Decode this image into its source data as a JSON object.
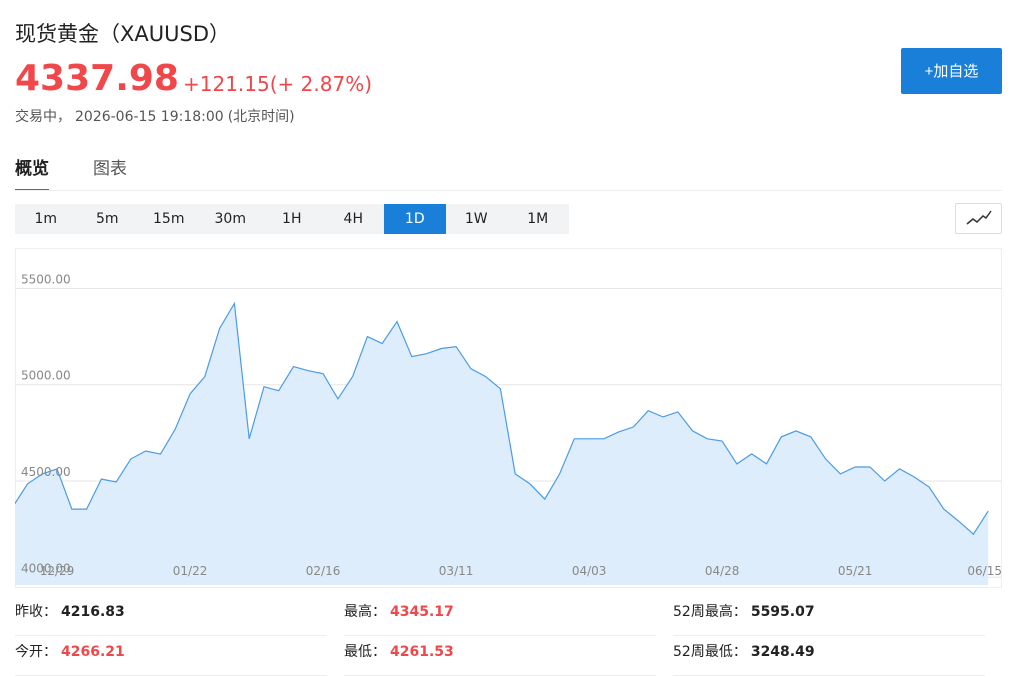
{
  "header": {
    "title": "现货黄金（XAUUSD）",
    "price": "4337.98",
    "change": "+121.15",
    "change_pct": "(+ 2.87%)",
    "status": "交易中，",
    "time": "2026-06-15 19:18:00",
    "timezone": "(北京时间)"
  },
  "button": "+加自选",
  "tabs": [
    "概览",
    "图表"
  ],
  "intervals": [
    "1m",
    "5m",
    "15m",
    "30m",
    "1H",
    "4H",
    "1D",
    "1W",
    "1M"
  ],
  "active_interval": "1D",
  "chart_data": {
    "type": "area",
    "color": "#4a9be8",
    "fill": "#deedfb",
    "categories": [
      null,
      null,
      null,
      "12/29",
      null,
      null,
      null,
      null,
      null,
      null,
      null,
      null,
      "01/22",
      null,
      null,
      null,
      null,
      null,
      null,
      null,
      null,
      "02/16",
      null,
      null,
      null,
      null,
      null,
      null,
      null,
      null,
      "03/11",
      null,
      null,
      null,
      null,
      null,
      null,
      null,
      null,
      "04/03",
      null,
      null,
      null,
      null,
      null,
      null,
      null,
      null,
      "04/28",
      null,
      null,
      null,
      null,
      null,
      null,
      null,
      null,
      "05/21",
      null,
      null,
      null,
      null,
      null,
      null,
      null,
      null,
      "06/15"
    ],
    "values": [
      4365,
      4485,
      4537,
      4563,
      4354,
      4354,
      4510,
      4495,
      4615,
      4656,
      4640,
      4770,
      4953,
      5042,
      5292,
      5422,
      4719,
      4990,
      4969,
      5094,
      5073,
      5057,
      4927,
      5042,
      5250,
      5214,
      5328,
      5146,
      5161,
      5188,
      5198,
      5083,
      5042,
      4979,
      4537,
      4485,
      4406,
      4537,
      4719,
      4719,
      4719,
      4755,
      4781,
      4865,
      4833,
      4859,
      4760,
      4719,
      4708,
      4589,
      4641,
      4589,
      4729,
      4760,
      4729,
      4615,
      4537,
      4573,
      4573,
      4500,
      4563,
      4521,
      4469,
      4354,
      4292,
      4224,
      4344
    ],
    "ylim": [
      3960,
      5710
    ],
    "yticks": [
      {
        "value": 4000,
        "label": "4000.00"
      },
      {
        "value": 4500,
        "label": "4500.00"
      },
      {
        "value": 5000,
        "label": "5000.00"
      },
      {
        "value": 5500,
        "label": "5500.00"
      }
    ],
    "grid": true
  },
  "stats": [
    [
      {
        "label": "昨收：",
        "value": "4216.83",
        "color": "#222222"
      },
      {
        "label": "最高：",
        "value": "4345.17",
        "color": "#f0474b"
      },
      {
        "label": "52周最高：",
        "value": "5595.07",
        "color": "#222222"
      }
    ],
    [
      {
        "label": "今开：",
        "value": "4266.21",
        "color": "#f0474b"
      },
      {
        "label": "最低：",
        "value": "4261.53",
        "color": "#f0474b"
      },
      {
        "label": "52周最低：",
        "value": "3248.49",
        "color": "#222222"
      }
    ]
  ]
}
